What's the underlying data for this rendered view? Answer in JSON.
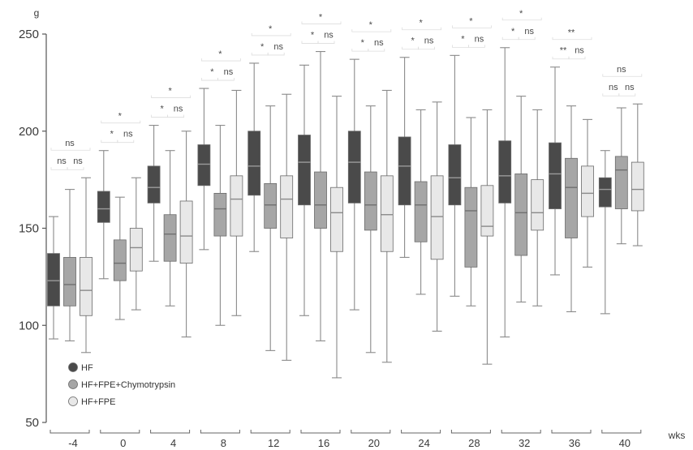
{
  "chart_data": {
    "type": "box",
    "y_unit": "g",
    "x_unit": "wks",
    "ylim": [
      50,
      250
    ],
    "yticks": [
      50,
      100,
      150,
      200,
      250
    ],
    "grid": false,
    "legend_position": "bottom-left",
    "categories": [
      "-4",
      "0",
      "4",
      "8",
      "12",
      "16",
      "20",
      "24",
      "28",
      "32",
      "36",
      "40"
    ],
    "series": [
      {
        "name": "HF",
        "color": "#4a4a4a",
        "median_color": "#9a9a9a",
        "boxes": [
          {
            "min": 93,
            "q1": 110,
            "median": 123,
            "q3": 137,
            "max": 156
          },
          {
            "min": 124,
            "q1": 153,
            "median": 160,
            "q3": 169,
            "max": 190
          },
          {
            "min": 133,
            "q1": 163,
            "median": 171,
            "q3": 182,
            "max": 203
          },
          {
            "min": 139,
            "q1": 172,
            "median": 183,
            "q3": 193,
            "max": 222
          },
          {
            "min": 138,
            "q1": 167,
            "median": 182,
            "q3": 200,
            "max": 235
          },
          {
            "min": 105,
            "q1": 162,
            "median": 184,
            "q3": 198,
            "max": 234
          },
          {
            "min": 108,
            "q1": 163,
            "median": 184,
            "q3": 200,
            "max": 237
          },
          {
            "min": 135,
            "q1": 162,
            "median": 182,
            "q3": 197,
            "max": 238
          },
          {
            "min": 115,
            "q1": 162,
            "median": 176,
            "q3": 193,
            "max": 239
          },
          {
            "min": 94,
            "q1": 163,
            "median": 177,
            "q3": 195,
            "max": 243
          },
          {
            "min": 126,
            "q1": 160,
            "median": 178,
            "q3": 194,
            "max": 233
          },
          {
            "min": 106,
            "q1": 161,
            "median": 170,
            "q3": 176,
            "max": 190
          }
        ]
      },
      {
        "name": "HF+FPE+Chymotrypsin",
        "color": "#a6a6a6",
        "median_color": "#707070",
        "boxes": [
          {
            "min": 92,
            "q1": 110,
            "median": 121,
            "q3": 135,
            "max": 170
          },
          {
            "min": 103,
            "q1": 123,
            "median": 132,
            "q3": 144,
            "max": 166
          },
          {
            "min": 110,
            "q1": 133,
            "median": 147,
            "q3": 157,
            "max": 190
          },
          {
            "min": 100,
            "q1": 146,
            "median": 160,
            "q3": 168,
            "max": 203
          },
          {
            "min": 87,
            "q1": 150,
            "median": 162,
            "q3": 173,
            "max": 213
          },
          {
            "min": 92,
            "q1": 150,
            "median": 162,
            "q3": 179,
            "max": 241
          },
          {
            "min": 86,
            "q1": 149,
            "median": 162,
            "q3": 179,
            "max": 213
          },
          {
            "min": 116,
            "q1": 143,
            "median": 162,
            "q3": 174,
            "max": 211
          },
          {
            "min": 110,
            "q1": 130,
            "median": 159,
            "q3": 171,
            "max": 207
          },
          {
            "min": 112,
            "q1": 136,
            "median": 158,
            "q3": 178,
            "max": 218
          },
          {
            "min": 107,
            "q1": 145,
            "median": 171,
            "q3": 186,
            "max": 213
          },
          {
            "min": 142,
            "q1": 160,
            "median": 180,
            "q3": 187,
            "max": 212
          }
        ]
      },
      {
        "name": "HF+FPE",
        "color": "#e8e8e8",
        "median_color": "#8a8a8a",
        "boxes": [
          {
            "min": 86,
            "q1": 105,
            "median": 118,
            "q3": 135,
            "max": 176
          },
          {
            "min": 108,
            "q1": 128,
            "median": 140,
            "q3": 150,
            "max": 176
          },
          {
            "min": 94,
            "q1": 132,
            "median": 146,
            "q3": 164,
            "max": 200
          },
          {
            "min": 105,
            "q1": 146,
            "median": 165,
            "q3": 177,
            "max": 221
          },
          {
            "min": 82,
            "q1": 145,
            "median": 165,
            "q3": 177,
            "max": 219
          },
          {
            "min": 73,
            "q1": 138,
            "median": 158,
            "q3": 171,
            "max": 218
          },
          {
            "min": 81,
            "q1": 138,
            "median": 157,
            "q3": 177,
            "max": 221
          },
          {
            "min": 97,
            "q1": 134,
            "median": 156,
            "q3": 177,
            "max": 215
          },
          {
            "min": 80,
            "q1": 146,
            "median": 151,
            "q3": 172,
            "max": 211
          },
          {
            "min": 110,
            "q1": 149,
            "median": 158,
            "q3": 175,
            "max": 211
          },
          {
            "min": 130,
            "q1": 156,
            "median": 168,
            "q3": 182,
            "max": 206
          },
          {
            "min": 141,
            "q1": 159,
            "median": 170,
            "q3": 184,
            "max": 214
          }
        ]
      }
    ],
    "annotations": [
      {
        "top": "ns",
        "left": "ns",
        "right": "ns"
      },
      {
        "top": "*",
        "left": "*",
        "right": "ns"
      },
      {
        "top": "*",
        "left": "*",
        "right": "ns"
      },
      {
        "top": "*",
        "left": "*",
        "right": "ns"
      },
      {
        "top": "*",
        "left": "*",
        "right": "ns"
      },
      {
        "top": "*",
        "left": "*",
        "right": "ns"
      },
      {
        "top": "*",
        "left": "*",
        "right": "ns"
      },
      {
        "top": "*",
        "left": "*",
        "right": "ns"
      },
      {
        "top": "*",
        "left": "*",
        "right": "ns"
      },
      {
        "top": "*",
        "left": "*",
        "right": "ns"
      },
      {
        "top": "**",
        "left": "**",
        "right": "ns"
      },
      {
        "top": "ns",
        "left": "ns",
        "right": "ns"
      }
    ]
  }
}
